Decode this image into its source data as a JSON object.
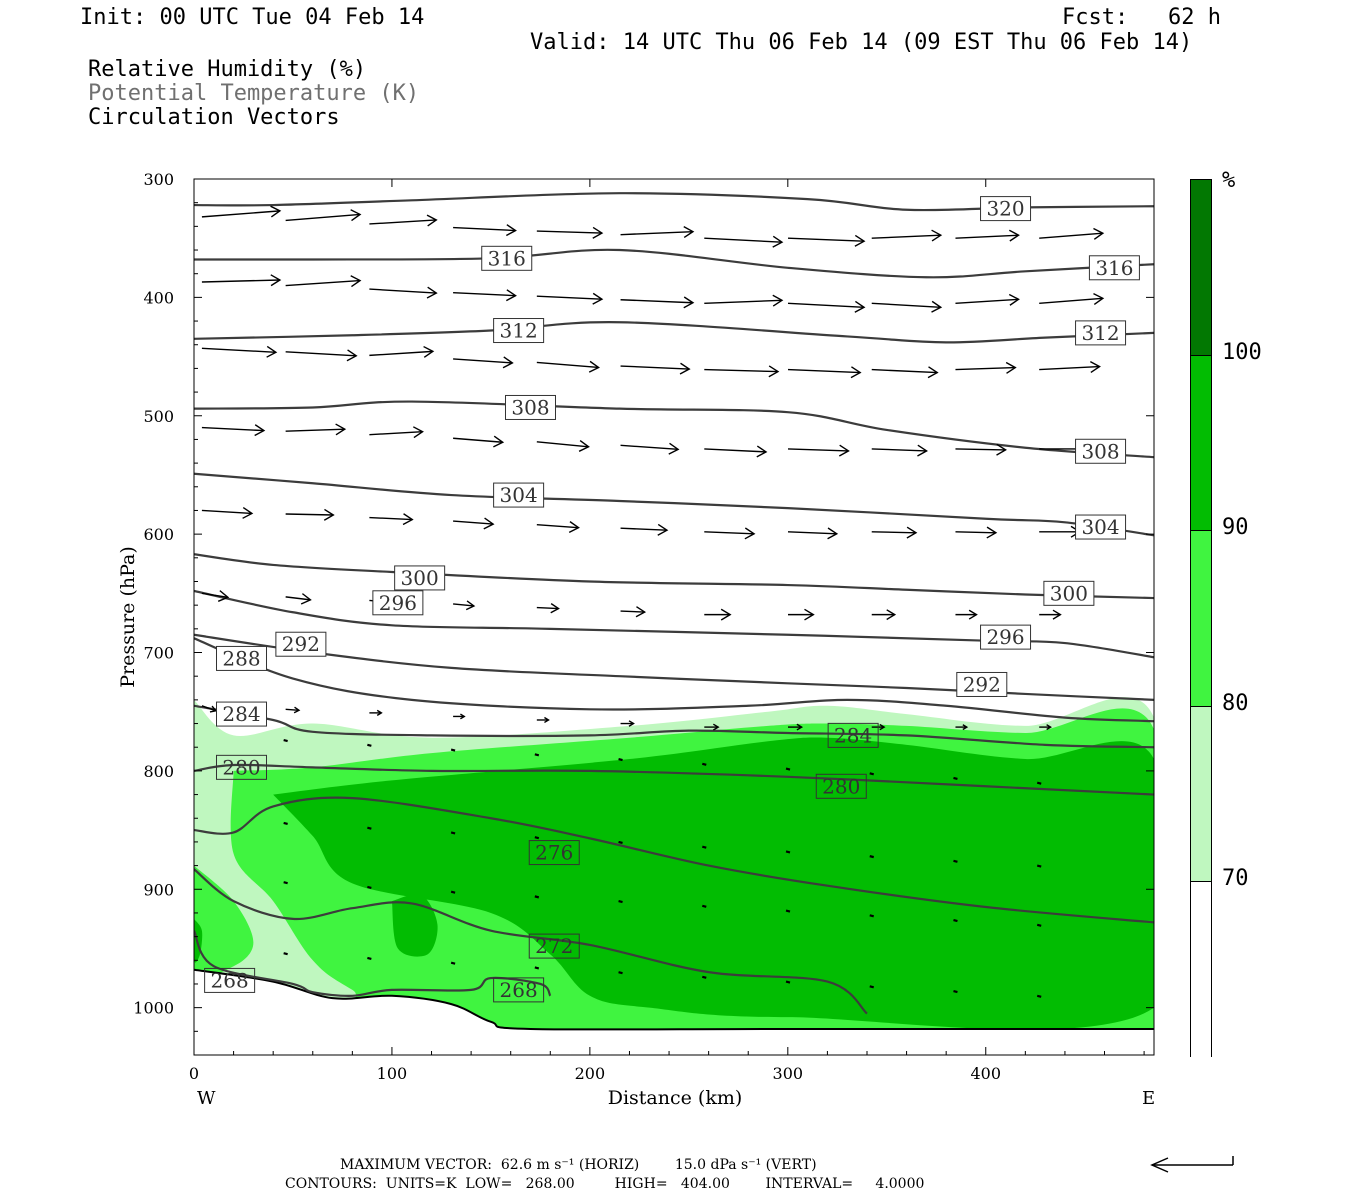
{
  "header": {
    "init": "Init: 00 UTC Tue 04 Feb 14",
    "fcst": "Fcst:   62 h",
    "valid": "Valid: 14 UTC Thu 06 Feb 14 (09 EST Thu 06 Feb 14)",
    "fields": [
      "Relative Humidity (%)",
      "Potential Temperature (K)",
      "Circulation Vectors"
    ]
  },
  "colors": {
    "rh_70": "#bff7bf",
    "rh_80": "#40f440",
    "rh_90": "#02bc02",
    "rh_100": "#027802",
    "theta_line": "#3c3c3c",
    "arrow": "#000000",
    "field_secondary": "#707070"
  },
  "chart_data": {
    "type": "contour-cross-section",
    "xlabel": "Distance (km)",
    "ylabel": "Pressure (hPa)",
    "xlim": [
      0,
      485
    ],
    "ylim": [
      1040,
      300
    ],
    "xticks": [
      0,
      100,
      200,
      300,
      400
    ],
    "yticks": [
      300,
      400,
      500,
      600,
      700,
      800,
      900,
      1000
    ],
    "x_end_labels": {
      "left": "W",
      "right": "E"
    },
    "colorbar": {
      "unit": "%",
      "levels": [
        70,
        80,
        90,
        100
      ],
      "colors": [
        "#ffffff",
        "#bff7bf",
        "#40f440",
        "#02bc02",
        "#027802"
      ]
    },
    "theta_contours": [
      {
        "level": 320,
        "points": [
          [
            0,
            322
          ],
          [
            40,
            322
          ],
          [
            110,
            318
          ],
          [
            215,
            312
          ],
          [
            310,
            317
          ],
          [
            360,
            326
          ],
          [
            420,
            324
          ],
          [
            485,
            323
          ]
        ],
        "labels": [
          [
            410,
            325
          ]
        ]
      },
      {
        "level": 316,
        "points": [
          [
            0,
            368
          ],
          [
            60,
            368
          ],
          [
            150,
            367
          ],
          [
            215,
            360
          ],
          [
            300,
            375
          ],
          [
            370,
            383
          ],
          [
            420,
            378
          ],
          [
            485,
            372
          ]
        ],
        "labels": [
          [
            158,
            367
          ],
          [
            465,
            375
          ]
        ]
      },
      {
        "level": 312,
        "points": [
          [
            0,
            435
          ],
          [
            80,
            432
          ],
          [
            150,
            428
          ],
          [
            215,
            421
          ],
          [
            330,
            433
          ],
          [
            380,
            438
          ],
          [
            430,
            434
          ],
          [
            485,
            430
          ]
        ],
        "labels": [
          [
            164,
            428
          ],
          [
            458,
            430
          ]
        ]
      },
      {
        "level": 308,
        "points": [
          [
            0,
            494
          ],
          [
            60,
            493
          ],
          [
            110,
            488
          ],
          [
            215,
            494
          ],
          [
            300,
            497
          ],
          [
            350,
            512
          ],
          [
            420,
            527
          ],
          [
            485,
            535
          ]
        ],
        "labels": [
          [
            170,
            493
          ],
          [
            458,
            530
          ]
        ]
      },
      {
        "level": 304,
        "points": [
          [
            0,
            549
          ],
          [
            60,
            557
          ],
          [
            130,
            567
          ],
          [
            215,
            572
          ],
          [
            300,
            578
          ],
          [
            400,
            587
          ],
          [
            440,
            590
          ],
          [
            485,
            601
          ]
        ],
        "labels": [
          [
            164,
            567
          ],
          [
            458,
            594
          ]
        ]
      },
      {
        "level": 300,
        "points": [
          [
            0,
            617
          ],
          [
            40,
            626
          ],
          [
            100,
            632
          ],
          [
            200,
            640
          ],
          [
            300,
            643
          ],
          [
            360,
            647
          ],
          [
            420,
            651
          ],
          [
            485,
            654
          ]
        ],
        "labels": [
          [
            114,
            637
          ],
          [
            442,
            650
          ]
        ]
      },
      {
        "level": 296,
        "points": [
          [
            0,
            648
          ],
          [
            50,
            666
          ],
          [
            100,
            677
          ],
          [
            180,
            680
          ],
          [
            300,
            685
          ],
          [
            400,
            690
          ],
          [
            440,
            692
          ],
          [
            485,
            704
          ]
        ],
        "labels": [
          [
            103,
            658
          ],
          [
            410,
            687
          ]
        ]
      },
      {
        "level": 292,
        "points": [
          [
            0,
            685
          ],
          [
            60,
            700
          ],
          [
            130,
            713
          ],
          [
            215,
            720
          ],
          [
            300,
            726
          ],
          [
            360,
            730
          ],
          [
            420,
            735
          ],
          [
            485,
            740
          ]
        ],
        "labels": [
          [
            54,
            693
          ],
          [
            398,
            727
          ]
        ]
      },
      {
        "level": 288,
        "points": [
          [
            0,
            688
          ],
          [
            50,
            722
          ],
          [
            110,
            740
          ],
          [
            200,
            748
          ],
          [
            280,
            745
          ],
          [
            330,
            740
          ],
          [
            380,
            745
          ],
          [
            440,
            755
          ],
          [
            485,
            758
          ]
        ],
        "labels": [
          [
            24,
            705
          ]
        ]
      },
      {
        "level": 284,
        "points": [
          [
            0,
            745
          ],
          [
            40,
            757
          ],
          [
            60,
            767
          ],
          [
            120,
            770
          ],
          [
            200,
            770
          ],
          [
            250,
            766
          ],
          [
            300,
            768
          ],
          [
            360,
            770
          ],
          [
            430,
            778
          ],
          [
            485,
            780
          ]
        ],
        "labels": [
          [
            24,
            752
          ],
          [
            333,
            770
          ]
        ]
      },
      {
        "level": 280,
        "points": [
          [
            0,
            800
          ],
          [
            20,
            795
          ],
          [
            60,
            797
          ],
          [
            120,
            800
          ],
          [
            200,
            800
          ],
          [
            300,
            805
          ],
          [
            400,
            813
          ],
          [
            485,
            820
          ]
        ],
        "labels": [
          [
            24,
            797
          ],
          [
            327,
            813
          ]
        ]
      },
      {
        "level": 276,
        "points": [
          [
            0,
            850
          ],
          [
            20,
            852
          ],
          [
            40,
            830
          ],
          [
            80,
            823
          ],
          [
            150,
            840
          ],
          [
            200,
            857
          ],
          [
            260,
            880
          ],
          [
            320,
            897
          ],
          [
            400,
            915
          ],
          [
            485,
            928
          ]
        ],
        "labels": [
          [
            182,
            869
          ]
        ]
      },
      {
        "level": 272,
        "points": [
          [
            0,
            883
          ],
          [
            20,
            910
          ],
          [
            50,
            925
          ],
          [
            80,
            916
          ],
          [
            110,
            912
          ],
          [
            150,
            935
          ],
          [
            200,
            947
          ],
          [
            260,
            970
          ],
          [
            320,
            978
          ],
          [
            340,
            1005
          ]
        ],
        "labels": [
          [
            182,
            948
          ]
        ]
      },
      {
        "level": 268,
        "points": [
          [
            0,
            935
          ],
          [
            10,
            965
          ],
          [
            50,
            980
          ],
          [
            60,
            987
          ],
          [
            80,
            990
          ],
          [
            100,
            985
          ],
          [
            140,
            985
          ],
          [
            150,
            975
          ],
          [
            175,
            980
          ],
          [
            180,
            990
          ]
        ],
        "labels": [
          [
            18,
            977
          ],
          [
            164,
            985
          ]
        ]
      }
    ],
    "rh_regions": [
      {
        "level": 70,
        "polygon": [
          [
            0,
            740
          ],
          [
            20,
            770
          ],
          [
            60,
            760
          ],
          [
            120,
            772
          ],
          [
            220,
            762
          ],
          [
            290,
            750
          ],
          [
            320,
            745
          ],
          [
            360,
            752
          ],
          [
            420,
            762
          ],
          [
            485,
            755
          ],
          [
            485,
            1020
          ],
          [
            0,
            1020
          ]
        ]
      },
      {
        "level": 80,
        "polygon": [
          [
            20,
            800
          ],
          [
            60,
            797
          ],
          [
            120,
            785
          ],
          [
            220,
            772
          ],
          [
            290,
            762
          ],
          [
            320,
            760
          ],
          [
            360,
            762
          ],
          [
            420,
            768
          ],
          [
            485,
            765
          ],
          [
            485,
            1020
          ],
          [
            120,
            1020
          ],
          [
            80,
            985
          ],
          [
            60,
            960
          ],
          [
            40,
            910
          ],
          [
            20,
            870
          ]
        ]
      },
      {
        "level": 80,
        "polygon": [
          [
            0,
            880
          ],
          [
            20,
            910
          ],
          [
            30,
            945
          ],
          [
            20,
            965
          ],
          [
            0,
            968
          ]
        ]
      },
      {
        "level": 90,
        "polygon": [
          [
            40,
            820
          ],
          [
            100,
            808
          ],
          [
            220,
            790
          ],
          [
            290,
            775
          ],
          [
            320,
            772
          ],
          [
            360,
            778
          ],
          [
            420,
            790
          ],
          [
            485,
            790
          ],
          [
            485,
            1000
          ],
          [
            300,
            1008
          ],
          [
            230,
            1000
          ],
          [
            200,
            990
          ],
          [
            180,
            955
          ],
          [
            150,
            920
          ],
          [
            80,
            895
          ],
          [
            60,
            855
          ]
        ]
      },
      {
        "level": 90,
        "polygon": [
          [
            100,
            910
          ],
          [
            115,
            905
          ],
          [
            123,
            930
          ],
          [
            118,
            955
          ],
          [
            103,
            950
          ]
        ]
      },
      {
        "level": 90,
        "polygon": [
          [
            0,
            925
          ],
          [
            4,
            935
          ],
          [
            3,
            955
          ],
          [
            0,
            960
          ]
        ]
      }
    ],
    "vectors": {
      "max_horizontal": "62.6 m s⁻¹ (HORIZ)",
      "max_vertical": "15.0 dPa s⁻¹ (VERT)"
    }
  },
  "footer": {
    "line1": "MAXIMUM VECTOR:  62.6 m s⁻¹ (HORIZ)        15.0 dPa s⁻¹ (VERT)",
    "line2": "CONTOURS:  UNITS=K  LOW=   268.00         HIGH=   404.00        INTERVAL=     4.0000"
  }
}
